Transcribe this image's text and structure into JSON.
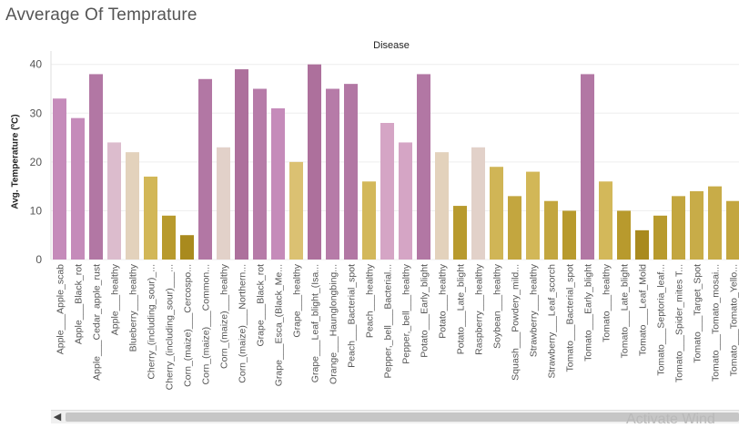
{
  "window": {
    "title": "Avverage Of Temprature",
    "watermark": "Activate Wind"
  },
  "chart_data": {
    "type": "bar",
    "title": "Disease",
    "ylabel": "Avg. Temperature (ºC)",
    "ylim": [
      0,
      42
    ],
    "yticks": [
      0,
      10,
      20,
      30,
      40
    ],
    "grid": true,
    "categories": [
      "Apple___Apple_scab",
      "Apple___Black_rot",
      "Apple___Cedar_apple_rust",
      "Apple___healthy",
      "Blueberry___healthy",
      "Cherry_(including_sour)_...",
      "Cherry_(including_sour)___...",
      "Corn_(maize)___Cercospo...",
      "Corn_(maize)___Common...",
      "Corn_(maize)___healthy",
      "Corn_(maize)___Northern...",
      "Grape___Black_rot",
      "Grape___Esca_(Black_Me...",
      "Grape___healthy",
      "Grape___Leaf_blight_(Isa...",
      "Orange___Haunglongbing...",
      "Peach___Bacterial_spot",
      "Peach___healthy",
      "Pepper,_bell___Bacterial...",
      "Pepper,_bell___healthy",
      "Potato___Early_blight",
      "Potato___healthy",
      "Potato___Late_blight",
      "Raspberry___healthy",
      "Soybean___healthy",
      "Squash___Powdery_mild...",
      "Strawberry___healthy",
      "Strawberry___Leaf_scorch",
      "Tomato___Bacterial_spot",
      "Tomato___Early_blight",
      "Tomato___healthy",
      "Tomato___Late_blight",
      "Tomato___Leaf_Mold",
      "Tomato___Septoria_leaf...",
      "Tomato___Spider_mites T...",
      "Tomato___Target_Spot",
      "Tomato___Tomato_mosai...",
      "Tomato___Tomato_Yello..."
    ],
    "values": [
      33,
      29,
      38,
      24,
      22,
      17,
      9,
      5,
      37,
      23,
      39,
      35,
      31,
      20,
      40,
      35,
      36,
      16,
      28,
      24,
      38,
      22,
      11,
      23,
      19,
      13,
      18,
      12,
      10,
      38,
      16,
      10,
      6,
      9,
      13,
      14,
      15,
      12
    ],
    "colors": [
      "#c58bba",
      "#c58bba",
      "#b277a4",
      "#dcbccd",
      "#e3d2bc",
      "#d2b757",
      "#b89a2d",
      "#a98a1e",
      "#b277a4",
      "#e2d1c9",
      "#ad709c",
      "#b67ba8",
      "#c58bba",
      "#dbc172",
      "#ad709c",
      "#b67ba8",
      "#b277a4",
      "#d3b85a",
      "#d5a5c5",
      "#d5a5c5",
      "#b277a4",
      "#e3d2bc",
      "#b89a2d",
      "#e2d1c9",
      "#d0b556",
      "#c3a63f",
      "#d2b757",
      "#c3a63f",
      "#b89a2d",
      "#b277a4",
      "#d3b85a",
      "#b89a2d",
      "#a98a1e",
      "#b89a2d",
      "#c3a63f",
      "#c8ac48",
      "#c8ac48",
      "#c3a63f"
    ]
  }
}
